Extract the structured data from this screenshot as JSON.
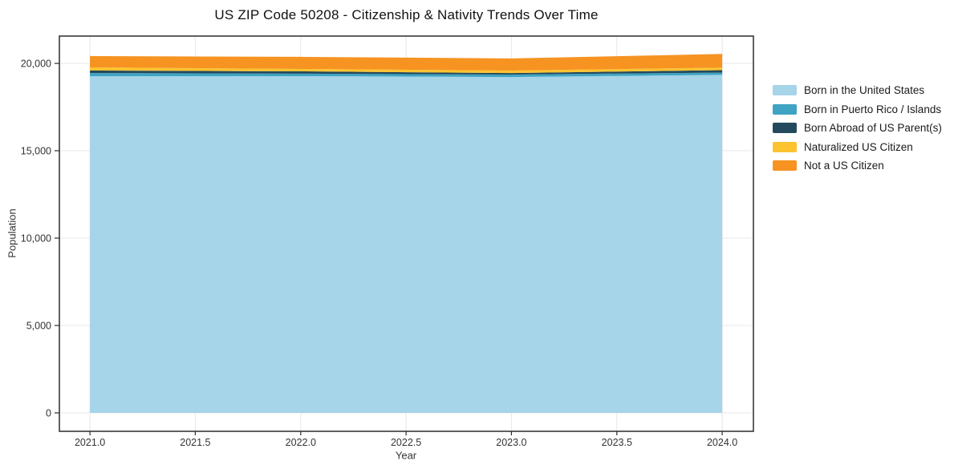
{
  "chart_data": {
    "type": "area",
    "stacked": true,
    "title": "US ZIP Code 50208 - Citizenship & Nativity Trends Over Time",
    "xlabel": "Year",
    "ylabel": "Population",
    "x": [
      2021,
      2022,
      2023,
      2024
    ],
    "series": [
      {
        "name": "Born in the United States",
        "color": "#a6d4e8",
        "values": [
          19270,
          19270,
          19220,
          19340
        ]
      },
      {
        "name": "Born in Puerto Rico / Islands",
        "color": "#3fa4c3",
        "values": [
          180,
          140,
          140,
          135
        ]
      },
      {
        "name": "Born Abroad of US Parent(s)",
        "color": "#25495c",
        "values": [
          140,
          135,
          90,
          140
        ]
      },
      {
        "name": "Naturalized US Citizen",
        "color": "#fdc32f",
        "values": [
          185,
          135,
          140,
          140
        ]
      },
      {
        "name": "Not a US Citizen",
        "color": "#f69321",
        "values": [
          645,
          695,
          695,
          785
        ]
      }
    ],
    "xticks": [
      2021.0,
      2021.5,
      2022.0,
      2022.5,
      2023.0,
      2023.5,
      2024.0
    ],
    "yticks": [
      0,
      5000,
      10000,
      15000,
      20000
    ],
    "xlim": [
      2020.855,
      2024.148
    ],
    "ylim": [
      -1057,
      21563
    ],
    "grid": true,
    "legend_position": "right-outside",
    "colors": {
      "axis": "#2b2b2b",
      "grid": "#e7e7e7",
      "tick_text": "#333333"
    }
  }
}
